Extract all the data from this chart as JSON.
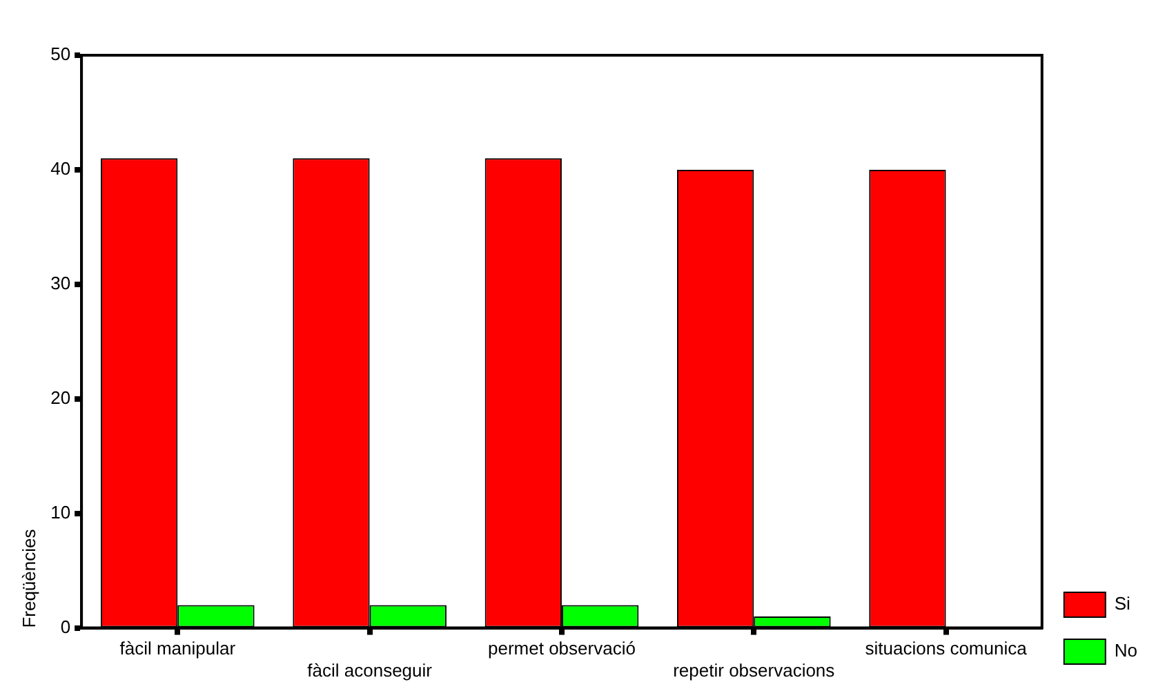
{
  "chart_data": {
    "type": "bar",
    "ylabel": "Freqüències",
    "categories": [
      "fàcil manipular",
      "fàcil aconseguir",
      "permet observació",
      "repetir observacions",
      "situacions comunica"
    ],
    "series": [
      {
        "name": "Si",
        "color": "#ff0000",
        "values": [
          41,
          41,
          41,
          40,
          40
        ]
      },
      {
        "name": "No",
        "color": "#00ff00",
        "values": [
          2,
          2,
          2,
          1,
          0
        ]
      }
    ],
    "ylim": [
      0,
      50
    ],
    "yticks": [
      0,
      10,
      20,
      30,
      40,
      50
    ],
    "grid": false,
    "legend": "right"
  }
}
